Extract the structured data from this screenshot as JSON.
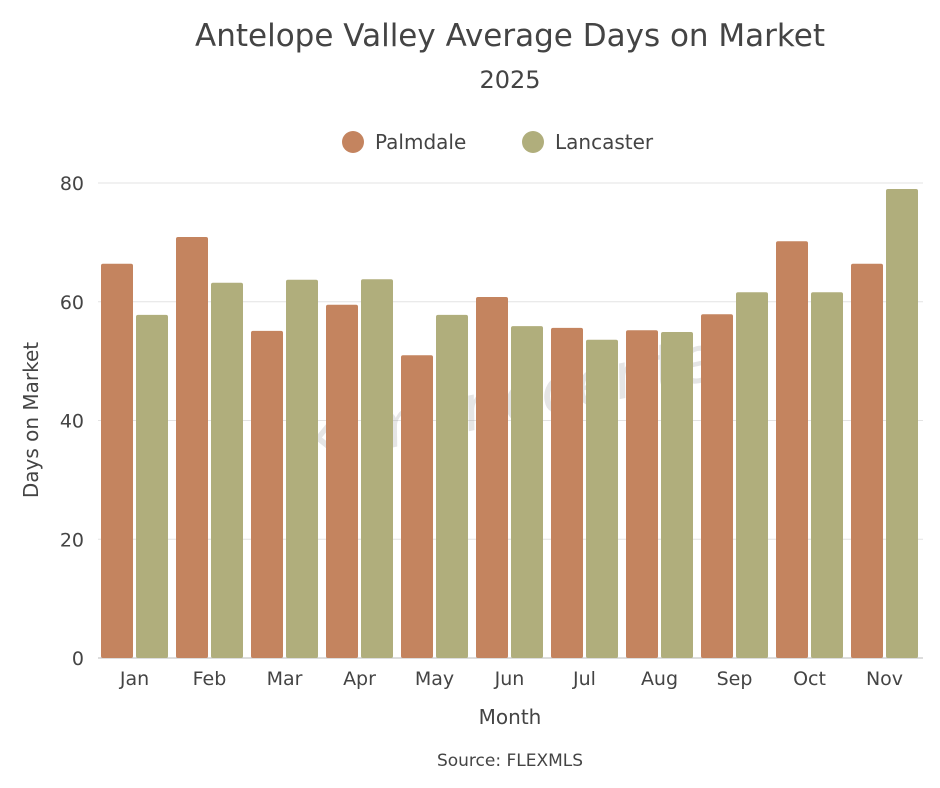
{
  "chart_data": {
    "type": "bar",
    "title": "Antelope Valley Average Days on Market",
    "subtitle": "2025",
    "xlabel": "Month",
    "ylabel": "Days on Market",
    "source": "Source: FLEXMLS",
    "watermark": "Kim Inocente",
    "ylim": [
      0,
      80
    ],
    "yticks": [
      0,
      20,
      40,
      60,
      80
    ],
    "grid": true,
    "legend_position": "top-center",
    "categories": [
      "Jan",
      "Feb",
      "Mar",
      "Apr",
      "May",
      "Jun",
      "Jul",
      "Aug",
      "Sep",
      "Oct",
      "Nov"
    ],
    "series": [
      {
        "name": "Palmdale",
        "color": "#c4845f",
        "values": [
          66.4,
          70.9,
          55.1,
          59.5,
          51.0,
          60.8,
          55.6,
          55.2,
          57.9,
          70.2,
          66.4
        ]
      },
      {
        "name": "Lancaster",
        "color": "#b0ae7c",
        "values": [
          57.8,
          63.2,
          63.7,
          63.8,
          57.8,
          55.9,
          53.6,
          54.9,
          61.6,
          61.6,
          79.0
        ]
      }
    ]
  }
}
